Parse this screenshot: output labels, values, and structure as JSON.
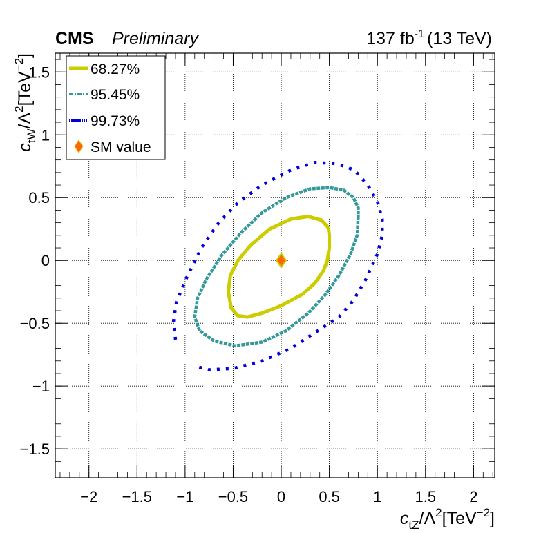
{
  "header": {
    "experiment": "CMS",
    "status": "Preliminary",
    "luminosity_value": "137 fb",
    "luminosity_exp": "-1",
    "energy": "(13 TeV)"
  },
  "chart_data": {
    "type": "scatter",
    "title": "",
    "xlabel": {
      "symbol": "c",
      "subscript": "tZ",
      "rest": "/Λ",
      "rest_sup": "2",
      "unit_open": "[TeV",
      "unit_sup": "−2",
      "unit_close": "]"
    },
    "ylabel": {
      "symbol": "c",
      "subscript": "tW",
      "rest": "/Λ",
      "rest_sup": "2",
      "unit_open": "[TeV",
      "unit_sup": "−2",
      "unit_close": "]"
    },
    "xlim": [
      -2.35,
      2.22
    ],
    "ylim": [
      -1.73,
      1.65
    ],
    "grid": true,
    "legend_position": "top-left",
    "x_ticks": [
      {
        "value": -2,
        "label": "−2"
      },
      {
        "value": -1.5,
        "label": "−1.5"
      },
      {
        "value": -1,
        "label": "−1"
      },
      {
        "value": -0.5,
        "label": "−0.5"
      },
      {
        "value": 0,
        "label": "0"
      },
      {
        "value": 0.5,
        "label": "0.5"
      },
      {
        "value": 1,
        "label": "1"
      },
      {
        "value": 1.5,
        "label": "1.5"
      },
      {
        "value": 2,
        "label": "2"
      }
    ],
    "y_ticks": [
      {
        "value": -1.5,
        "label": "−1.5"
      },
      {
        "value": -1,
        "label": "−1"
      },
      {
        "value": -0.5,
        "label": "−0.5"
      },
      {
        "value": 0,
        "label": "0"
      },
      {
        "value": 0.5,
        "label": "0.5"
      },
      {
        "value": 1,
        "label": "1"
      },
      {
        "value": 1.5,
        "label": "1.5"
      }
    ],
    "series": [
      {
        "name": "68.27%",
        "color": "#cccc00",
        "style": "solid",
        "points": [
          [
            0.5,
            0.2
          ],
          [
            0.5,
            0.1
          ],
          [
            0.48,
            0.0
          ],
          [
            0.44,
            -0.08
          ],
          [
            0.35,
            -0.18
          ],
          [
            0.22,
            -0.27
          ],
          [
            0.0,
            -0.36
          ],
          [
            -0.2,
            -0.42
          ],
          [
            -0.35,
            -0.45
          ],
          [
            -0.45,
            -0.44
          ],
          [
            -0.52,
            -0.38
          ],
          [
            -0.55,
            -0.25
          ],
          [
            -0.53,
            -0.12
          ],
          [
            -0.45,
            0.0
          ],
          [
            -0.32,
            0.12
          ],
          [
            -0.12,
            0.25
          ],
          [
            0.1,
            0.33
          ],
          [
            0.28,
            0.35
          ],
          [
            0.42,
            0.32
          ],
          [
            0.49,
            0.26
          ],
          [
            0.5,
            0.2
          ]
        ]
      },
      {
        "name": "95.45%",
        "color": "#339999",
        "style": "dotted",
        "points": [
          [
            0.8,
            0.35
          ],
          [
            0.79,
            0.2
          ],
          [
            0.72,
            0.05
          ],
          [
            0.6,
            -0.12
          ],
          [
            0.45,
            -0.28
          ],
          [
            0.28,
            -0.42
          ],
          [
            0.05,
            -0.56
          ],
          [
            -0.2,
            -0.65
          ],
          [
            -0.48,
            -0.68
          ],
          [
            -0.7,
            -0.64
          ],
          [
            -0.85,
            -0.56
          ],
          [
            -0.9,
            -0.45
          ],
          [
            -0.87,
            -0.3
          ],
          [
            -0.78,
            -0.15
          ],
          [
            -0.62,
            0.04
          ],
          [
            -0.42,
            0.22
          ],
          [
            -0.2,
            0.38
          ],
          [
            0.05,
            0.5
          ],
          [
            0.3,
            0.57
          ],
          [
            0.5,
            0.58
          ],
          [
            0.65,
            0.56
          ],
          [
            0.75,
            0.5
          ],
          [
            0.8,
            0.42
          ],
          [
            0.8,
            0.35
          ]
        ]
      },
      {
        "name": "99.73%",
        "color": "#0000dd",
        "style": "sparse",
        "points": [
          [
            -1.1,
            -0.63
          ],
          [
            -1.12,
            -0.48
          ],
          [
            -1.09,
            -0.33
          ],
          [
            -0.98,
            -0.13
          ],
          [
            -0.83,
            0.1
          ],
          [
            -0.65,
            0.3
          ],
          [
            -0.45,
            0.46
          ],
          [
            -0.2,
            0.6
          ],
          [
            0.1,
            0.72
          ],
          [
            0.35,
            0.78
          ],
          [
            0.58,
            0.77
          ],
          [
            0.76,
            0.72
          ],
          [
            0.9,
            0.6
          ],
          [
            1.0,
            0.47
          ],
          [
            1.05,
            0.33
          ],
          [
            1.05,
            0.2
          ],
          [
            1.0,
            0.05
          ],
          [
            0.88,
            -0.15
          ],
          [
            0.75,
            -0.32
          ],
          [
            0.6,
            -0.45
          ],
          [
            0.3,
            -0.6
          ],
          [
            0.1,
            -0.7
          ],
          [
            -0.2,
            -0.8
          ],
          [
            -0.5,
            -0.86
          ],
          [
            -0.75,
            -0.87
          ],
          [
            -0.9,
            -0.84
          ]
        ]
      }
    ],
    "marker": {
      "name": "SM value",
      "x": 0,
      "y": 0,
      "fill": "#ff6600",
      "stroke": "#cccc00"
    }
  }
}
